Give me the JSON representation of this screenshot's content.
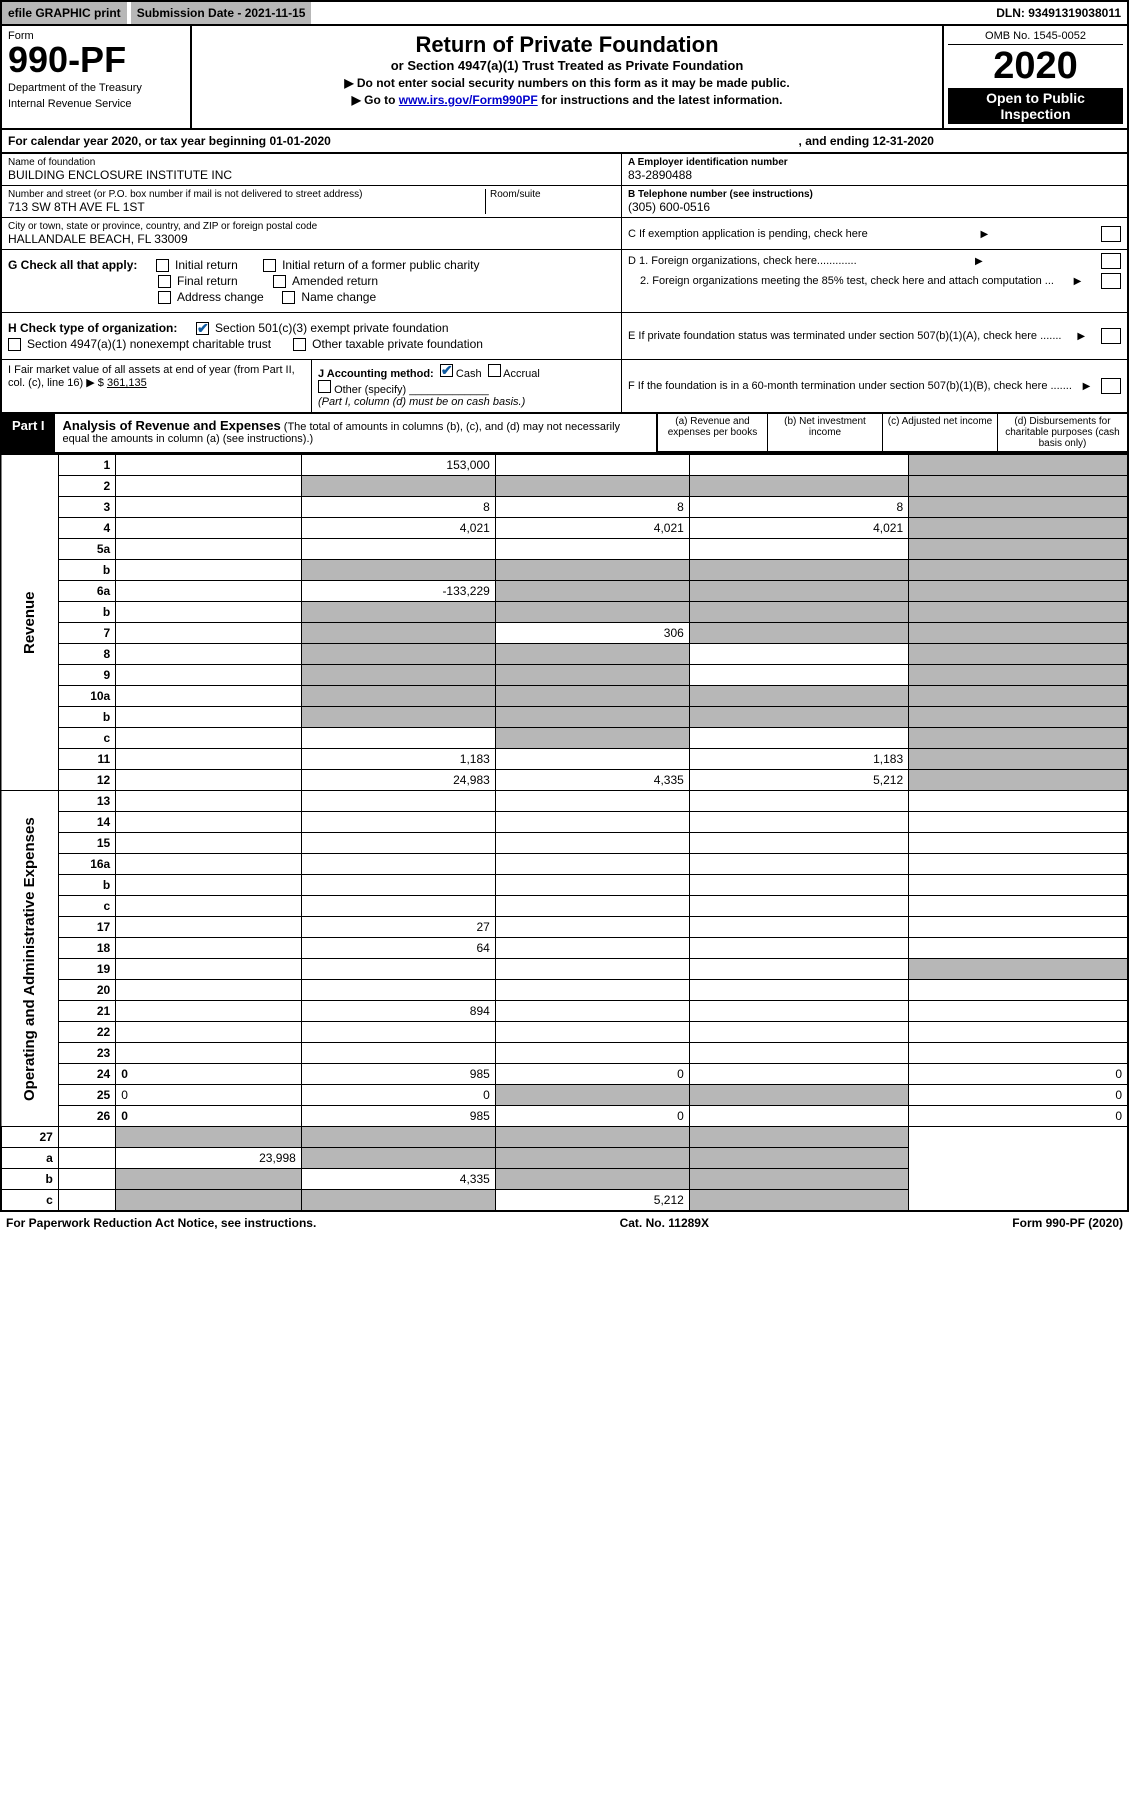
{
  "top": {
    "efile": "efile GRAPHIC print",
    "subdate": "Submission Date - 2021-11-15",
    "dln": "DLN: 93491319038011"
  },
  "header": {
    "form": "Form",
    "formno": "990-PF",
    "dept": "Department of the Treasury",
    "irs": "Internal Revenue Service",
    "title": "Return of Private Foundation",
    "subtitle": "or Section 4947(a)(1) Trust Treated as Private Foundation",
    "note1": "▶ Do not enter social security numbers on this form as it may be made public.",
    "note2": "▶ Go to www.irs.gov/Form990PF for instructions and the latest information.",
    "omb": "OMB No. 1545-0052",
    "year": "2020",
    "open": "Open to Public Inspection"
  },
  "cal": {
    "prefix": "For calendar year 2020, or tax year beginning 01-01-2020",
    "suffix": ", and ending 12-31-2020"
  },
  "entity": {
    "name_lbl": "Name of foundation",
    "name": "BUILDING ENCLOSURE INSTITUTE INC",
    "addr_lbl": "Number and street (or P.O. box number if mail is not delivered to street address)",
    "addr": "713 SW 8TH AVE FL 1ST",
    "room_lbl": "Room/suite",
    "city_lbl": "City or town, state or province, country, and ZIP or foreign postal code",
    "city": "HALLANDALE BEACH, FL  33009",
    "ein_lbl": "A Employer identification number",
    "ein": "83-2890488",
    "phone_lbl": "B Telephone number (see instructions)",
    "phone": "(305) 600-0516",
    "c_lbl": "C If exemption application is pending, check here"
  },
  "g": {
    "label": "G Check all that apply:",
    "initial": "Initial return",
    "final": "Final return",
    "addrchg": "Address change",
    "initial_pub": "Initial return of a former public charity",
    "amended": "Amended return",
    "namechg": "Name change"
  },
  "h": {
    "label": "H Check type of organization:",
    "s501": "Section 501(c)(3) exempt private foundation",
    "s4947": "Section 4947(a)(1) nonexempt charitable trust",
    "other": "Other taxable private foundation"
  },
  "d": {
    "d1": "D 1. Foreign organizations, check here.............",
    "d2": "2. Foreign organizations meeting the 85% test, check here and attach computation ..."
  },
  "e": {
    "lbl": "E  If private foundation status was terminated under section 507(b)(1)(A), check here ......."
  },
  "f": {
    "lbl": "F  If the foundation is in a 60-month termination under section 507(b)(1)(B), check here ......."
  },
  "i": {
    "lbl": "I Fair market value of all assets at end of year (from Part II, col. (c), line 16) ▶ $",
    "val": "361,135"
  },
  "j": {
    "lbl": "J Accounting method:",
    "cash": "Cash",
    "accrual": "Accrual",
    "other": "Other (specify)",
    "note": "(Part I, column (d) must be on cash basis.)"
  },
  "part1": {
    "label": "Part I",
    "title": "Analysis of Revenue and Expenses",
    "note": "(The total of amounts in columns (b), (c), and (d) may not necessarily equal the amounts in column (a) (see instructions).)",
    "cols": {
      "a": "(a) Revenue and expenses per books",
      "b": "(b) Net investment income",
      "c": "(c) Adjusted net income",
      "d": "(d) Disbursements for charitable purposes (cash basis only)"
    }
  },
  "colors": {
    "grey": "#b7b7b7",
    "black": "#000000",
    "white": "#ffffff",
    "link": "#0000cc",
    "check": "#0f5aa0"
  },
  "sidelabels": {
    "rev": "Revenue",
    "exp": "Operating and Administrative Expenses"
  },
  "rows": [
    {
      "n": "1",
      "d": "",
      "a": "153,000",
      "b": "",
      "c": "",
      "greyd": true
    },
    {
      "n": "2",
      "d": "",
      "a": "",
      "b": "",
      "c": "",
      "greya": true,
      "greyb": true,
      "greyc": true,
      "greyd": true
    },
    {
      "n": "3",
      "d": "",
      "a": "8",
      "b": "8",
      "c": "8",
      "greyd": true
    },
    {
      "n": "4",
      "d": "",
      "a": "4,021",
      "b": "4,021",
      "c": "4,021",
      "greyd": true
    },
    {
      "n": "5a",
      "d": "",
      "a": "",
      "b": "",
      "c": "",
      "greyd": true
    },
    {
      "n": "b",
      "d": "",
      "a": "",
      "b": "",
      "c": "",
      "greya": true,
      "greyb": true,
      "greyc": true,
      "greyd": true
    },
    {
      "n": "6a",
      "d": "",
      "a": "-133,229",
      "b": "",
      "c": "",
      "greyb": true,
      "greyc": true,
      "greyd": true
    },
    {
      "n": "b",
      "d": "",
      "a": "",
      "b": "",
      "c": "",
      "greya": true,
      "greyb": true,
      "greyc": true,
      "greyd": true
    },
    {
      "n": "7",
      "d": "",
      "a": "",
      "b": "306",
      "c": "",
      "greya": true,
      "greyc": true,
      "greyd": true
    },
    {
      "n": "8",
      "d": "",
      "a": "",
      "b": "",
      "c": "",
      "greya": true,
      "greyb": true,
      "greyd": true
    },
    {
      "n": "9",
      "d": "",
      "a": "",
      "b": "",
      "c": "",
      "greya": true,
      "greyb": true,
      "greyd": true
    },
    {
      "n": "10a",
      "d": "",
      "a": "",
      "b": "",
      "c": "",
      "greya": true,
      "greyb": true,
      "greyc": true,
      "greyd": true
    },
    {
      "n": "b",
      "d": "",
      "a": "",
      "b": "",
      "c": "",
      "greya": true,
      "greyb": true,
      "greyc": true,
      "greyd": true
    },
    {
      "n": "c",
      "d": "",
      "a": "",
      "b": "",
      "c": "",
      "greyb": true,
      "greyd": true
    },
    {
      "n": "11",
      "d": "",
      "a": "1,183",
      "b": "",
      "c": "1,183",
      "greyd": true
    },
    {
      "n": "12",
      "d": "",
      "a": "24,983",
      "b": "4,335",
      "c": "5,212",
      "bold": true,
      "greyd": true
    }
  ],
  "exp_rows": [
    {
      "n": "13",
      "d": "",
      "a": "",
      "b": "",
      "c": ""
    },
    {
      "n": "14",
      "d": "",
      "a": "",
      "b": "",
      "c": ""
    },
    {
      "n": "15",
      "d": "",
      "a": "",
      "b": "",
      "c": ""
    },
    {
      "n": "16a",
      "d": "",
      "a": "",
      "b": "",
      "c": ""
    },
    {
      "n": "b",
      "d": "",
      "a": "",
      "b": "",
      "c": ""
    },
    {
      "n": "c",
      "d": "",
      "a": "",
      "b": "",
      "c": ""
    },
    {
      "n": "17",
      "d": "",
      "a": "27",
      "b": "",
      "c": ""
    },
    {
      "n": "18",
      "d": "",
      "a": "64",
      "b": "",
      "c": ""
    },
    {
      "n": "19",
      "d": "",
      "a": "",
      "b": "",
      "c": "",
      "greyd": true
    },
    {
      "n": "20",
      "d": "",
      "a": "",
      "b": "",
      "c": ""
    },
    {
      "n": "21",
      "d": "",
      "a": "894",
      "b": "",
      "c": ""
    },
    {
      "n": "22",
      "d": "",
      "a": "",
      "b": "",
      "c": ""
    },
    {
      "n": "23",
      "d": "",
      "a": "",
      "b": "",
      "c": ""
    },
    {
      "n": "24",
      "d": "0",
      "a": "985",
      "b": "0",
      "c": "",
      "bold": true
    },
    {
      "n": "25",
      "d": "0",
      "a": "0",
      "b": "",
      "c": "",
      "greyb": true,
      "greyc": true
    },
    {
      "n": "26",
      "d": "0",
      "a": "985",
      "b": "0",
      "c": "",
      "bold": true
    }
  ],
  "net_rows": [
    {
      "n": "27",
      "d": "",
      "a": "",
      "b": "",
      "c": "",
      "greya": true,
      "greyb": true,
      "greyc": true,
      "greyd": true
    },
    {
      "n": "a",
      "d": "",
      "a": "23,998",
      "b": "",
      "c": "",
      "bold": true,
      "greyb": true,
      "greyc": true,
      "greyd": true
    },
    {
      "n": "b",
      "d": "",
      "a": "",
      "b": "4,335",
      "c": "",
      "bold": true,
      "greya": true,
      "greyc": true,
      "greyd": true
    },
    {
      "n": "c",
      "d": "",
      "a": "",
      "b": "",
      "c": "5,212",
      "bold": true,
      "greya": true,
      "greyb": true,
      "greyd": true
    }
  ],
  "footer": {
    "pra": "For Paperwork Reduction Act Notice, see instructions.",
    "cat": "Cat. No. 11289X",
    "form": "Form 990-PF (2020)"
  }
}
